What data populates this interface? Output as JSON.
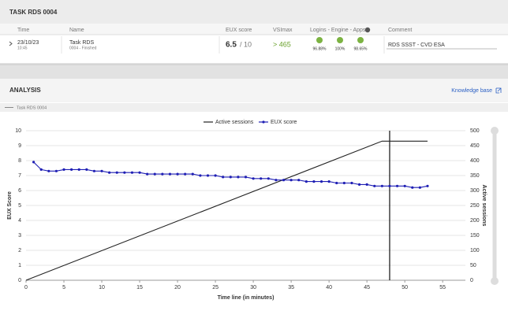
{
  "header": {
    "title": "TASK RDS 0004"
  },
  "table": {
    "columns": [
      "Time",
      "Name",
      "EUX score",
      "VSImax",
      "Logins - Engine - Apps",
      "Comment"
    ],
    "row": {
      "date": "23/10/23",
      "time": "10:45",
      "name": "Task RDS",
      "status": "0004 - Finished",
      "score": 6.5,
      "score_max": "/ 10",
      "vsimax": "> 465",
      "logins": "96.88%",
      "engine": "100%",
      "apps": "98.65%",
      "comment": "RDS SSST - CVD ESA"
    }
  },
  "analysis": {
    "title": "ANALYSIS",
    "link": "Knowledge base",
    "tab": "Task RDS 0004"
  },
  "chart_data": {
    "type": "line",
    "xlabel": "Time line (in minutes)",
    "ylabel": "EUX Score",
    "y2label": "Active sessions",
    "xlim": [
      0,
      58
    ],
    "xticks": [
      0,
      5,
      10,
      15,
      20,
      25,
      30,
      35,
      40,
      45,
      50,
      55
    ],
    "ylim": [
      0,
      10
    ],
    "yticks": [
      0,
      1,
      2,
      3,
      4,
      5,
      6,
      7,
      8,
      9,
      10
    ],
    "y2lim": [
      0,
      500
    ],
    "y2ticks": [
      0,
      50,
      100,
      150,
      200,
      250,
      300,
      350,
      400,
      450,
      500
    ],
    "grid": true,
    "legend": "top",
    "vline_x": 48,
    "series": [
      {
        "name": "Active sessions",
        "color": "#222222",
        "axis": "y2",
        "x": [
          0,
          47,
          53
        ],
        "values": [
          0,
          465,
          465
        ]
      },
      {
        "name": "EUX score",
        "color": "#1f1fb4",
        "marker": true,
        "x": [
          1,
          2,
          3,
          4,
          5,
          6,
          7,
          8,
          9,
          10,
          11,
          12,
          13,
          14,
          15,
          16,
          17,
          18,
          19,
          20,
          21,
          22,
          23,
          24,
          25,
          26,
          27,
          28,
          29,
          30,
          31,
          32,
          33,
          34,
          35,
          36,
          37,
          38,
          39,
          40,
          41,
          42,
          43,
          44,
          45,
          46,
          47,
          48,
          49,
          50,
          51,
          52,
          53
        ],
        "values": [
          7.9,
          7.4,
          7.3,
          7.3,
          7.4,
          7.4,
          7.4,
          7.4,
          7.3,
          7.3,
          7.2,
          7.2,
          7.2,
          7.2,
          7.2,
          7.1,
          7.1,
          7.1,
          7.1,
          7.1,
          7.1,
          7.1,
          7.0,
          7.0,
          7.0,
          6.9,
          6.9,
          6.9,
          6.9,
          6.8,
          6.8,
          6.8,
          6.7,
          6.7,
          6.7,
          6.7,
          6.6,
          6.6,
          6.6,
          6.6,
          6.5,
          6.5,
          6.5,
          6.4,
          6.4,
          6.3,
          6.3,
          6.3,
          6.3,
          6.3,
          6.2,
          6.2,
          6.3
        ]
      }
    ]
  }
}
